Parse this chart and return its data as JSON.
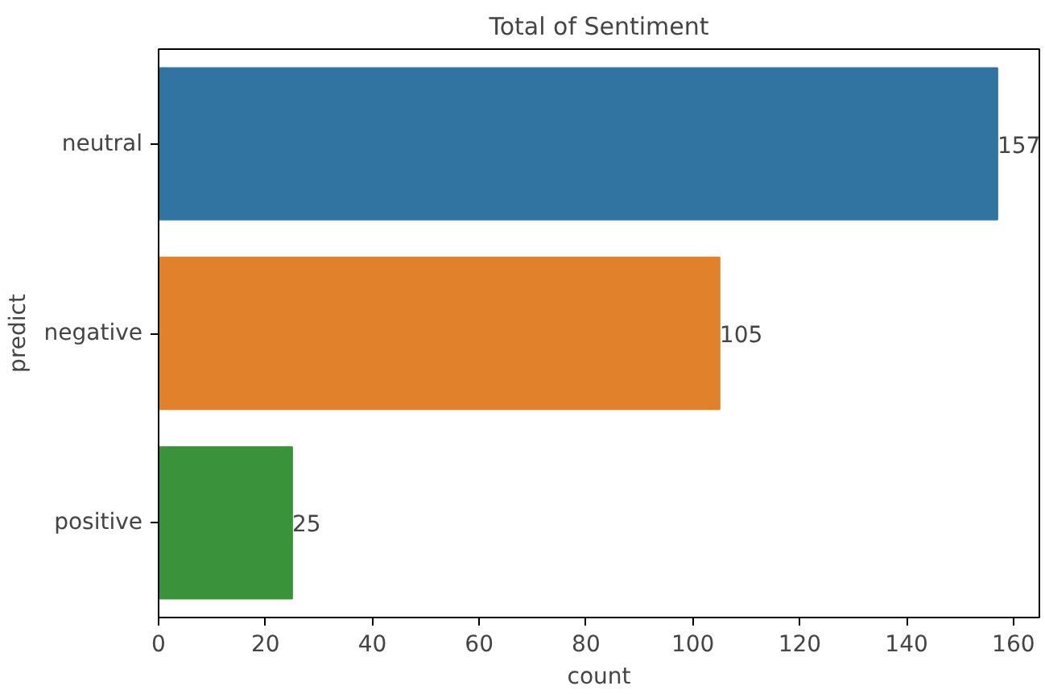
{
  "chart_data": {
    "type": "bar",
    "orientation": "horizontal",
    "title": "Total of Sentiment",
    "xlabel": "count",
    "ylabel": "predict",
    "categories": [
      "neutral",
      "negative",
      "positive"
    ],
    "values": [
      157,
      105,
      25
    ],
    "colors": [
      "#3274a1",
      "#e1812c",
      "#3a923a"
    ],
    "xlim": [
      0,
      164.85
    ],
    "xticks": [
      0,
      20,
      40,
      60,
      80,
      100,
      120,
      140,
      160
    ],
    "data_labels": true,
    "grid": false
  }
}
